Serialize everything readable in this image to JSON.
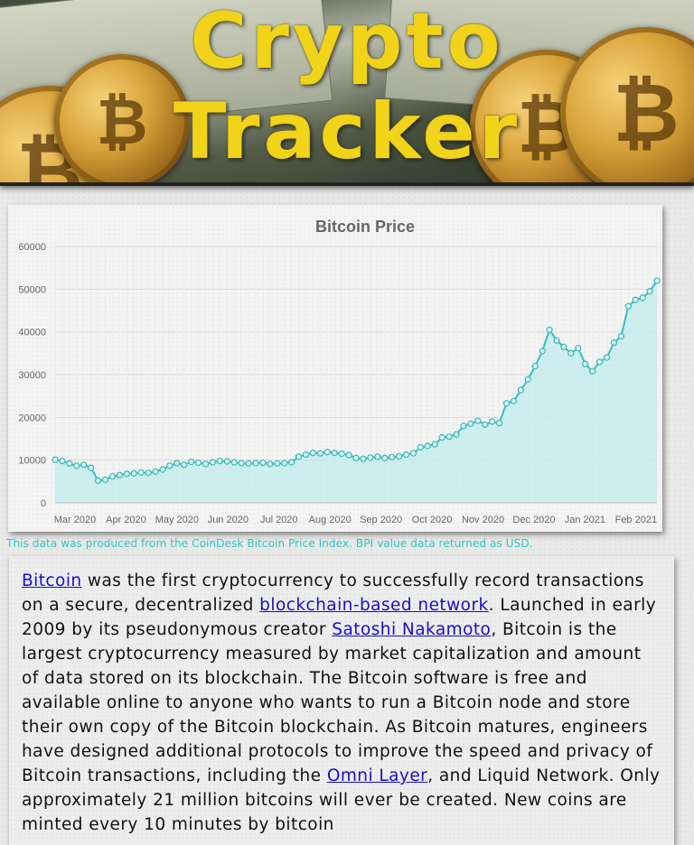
{
  "banner": {
    "title_line1": "Crypto",
    "title_line2": "Tracker",
    "title_color": "#f1d31a"
  },
  "chart_data": {
    "type": "area",
    "title": "Bitcoin Price",
    "line_color": "#3dbdbd",
    "fill_color": "#c5ebec",
    "y_ticks": [
      "0",
      "10000",
      "20000",
      "30000",
      "40000",
      "50000",
      "60000"
    ],
    "ylim": [
      0,
      60000
    ],
    "x_tick_labels": [
      "Mar 2020",
      "Apr 2020",
      "May 2020",
      "Jun 2020",
      "Jul 2020",
      "Aug 2020",
      "Sep 2020",
      "Oct 2020",
      "Nov 2020",
      "Dec 2020",
      "Jan 2021",
      "Feb 2021"
    ],
    "grid": true,
    "legend": "none",
    "values": [
      10100,
      9800,
      9200,
      8700,
      8900,
      8200,
      5200,
      5400,
      6200,
      6500,
      6800,
      6900,
      7100,
      7000,
      7300,
      7800,
      8700,
      9300,
      8900,
      9600,
      9400,
      9100,
      9500,
      9800,
      9700,
      9500,
      9300,
      9200,
      9300,
      9400,
      9100,
      9200,
      9300,
      9500,
      10800,
      11300,
      11700,
      11600,
      11900,
      11700,
      11500,
      11200,
      10500,
      10300,
      10600,
      10800,
      10500,
      10700,
      10900,
      11300,
      11600,
      13000,
      13300,
      13700,
      15300,
      15500,
      16000,
      18000,
      18500,
      19200,
      18300,
      19000,
      18700,
      23300,
      23800,
      26400,
      28900,
      32000,
      35500,
      40500,
      38000,
      36500,
      35000,
      36200,
      32500,
      30800,
      33000,
      34000,
      37500,
      39000,
      46000,
      47500,
      48000,
      49500,
      52000
    ]
  },
  "source_note": "This data was produced from the CoinDesk Bitcoin Price Index. BPI value data returned as USD.",
  "article": {
    "link_bitcoin": "Bitcoin",
    "text1": " was the first cryptocurrency to successfully record transactions on a secure, decentralized ",
    "link_blockchain": "blockchain-based network",
    "text2": ". Launched in early 2009 by its pseudonymous creator ",
    "link_satoshi": "Satoshi Nakamoto",
    "text3": ", Bitcoin is the largest cryptocurrency measured by market capitalization and amount of data stored on its blockchain. The Bitcoin software is free and available online to anyone who wants to run a Bitcoin node and store their own copy of the Bitcoin blockchain. As Bitcoin matures, engineers have designed additional protocols to improve the speed and privacy of Bitcoin transactions, including the ",
    "link_omni": "Omni Layer",
    "text4": ", and Liquid Network. Only approximately 21 million bitcoins will ever be created. New coins are minted every 10 minutes by bitcoin"
  }
}
